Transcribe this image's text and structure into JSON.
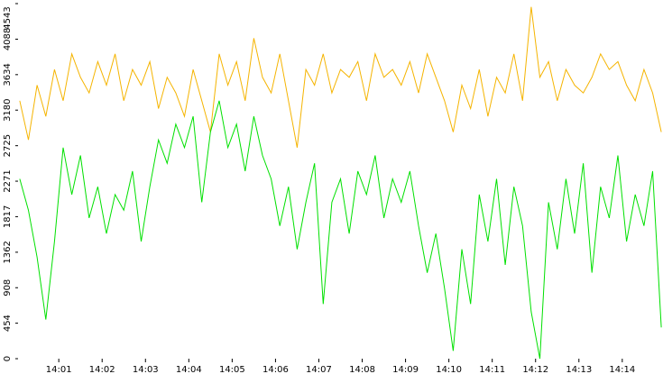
{
  "chart_data": {
    "type": "line",
    "x": [
      0.1,
      0.3,
      0.5,
      0.7,
      0.9,
      1.1,
      1.3,
      1.5,
      1.7,
      1.9,
      2.1,
      2.3,
      2.5,
      2.7,
      2.9,
      3.1,
      3.3,
      3.5,
      3.7,
      3.9,
      4.1,
      4.3,
      4.5,
      4.7,
      4.9,
      5.1,
      5.3,
      5.5,
      5.7,
      5.9,
      6.1,
      6.3,
      6.5,
      6.7,
      6.9,
      7.1,
      7.3,
      7.5,
      7.7,
      7.9,
      8.1,
      8.3,
      8.5,
      8.7,
      8.9,
      9.1,
      9.3,
      9.5,
      9.7,
      9.9,
      10.1,
      10.3,
      10.5,
      10.7,
      10.9,
      11.1,
      11.3,
      11.5,
      11.7,
      11.9,
      12.1,
      12.3,
      12.5,
      12.7,
      12.9,
      13.1,
      13.3,
      13.5,
      13.7,
      13.9,
      14.1,
      14.3,
      14.5,
      14.7,
      14.9
    ],
    "series": [
      {
        "color": "#f5b400",
        "values": [
          3300,
          2800,
          3500,
          3100,
          3700,
          3300,
          3900,
          3600,
          3400,
          3800,
          3500,
          3900,
          3300,
          3700,
          3500,
          3800,
          3200,
          3600,
          3400,
          3100,
          3700,
          3300,
          2900,
          3900,
          3500,
          3800,
          3300,
          4100,
          3600,
          3400,
          3900,
          3300,
          2700,
          3700,
          3500,
          3900,
          3400,
          3700,
          3600,
          3800,
          3300,
          3900,
          3600,
          3700,
          3500,
          3800,
          3400,
          3900,
          3600,
          3300,
          2900,
          3500,
          3200,
          3700,
          3100,
          3600,
          3400,
          3900,
          3300,
          4500,
          3600,
          3800,
          3300,
          3700,
          3500,
          3400,
          3600,
          3900,
          3700,
          3800,
          3500,
          3300,
          3700,
          3400,
          2900
        ]
      },
      {
        "color": "#00e000",
        "values": [
          2300,
          1900,
          1300,
          500,
          1500,
          2700,
          2100,
          2600,
          1800,
          2200,
          1600,
          2100,
          1900,
          2400,
          1500,
          2200,
          2800,
          2500,
          3000,
          2700,
          3100,
          2000,
          2900,
          3300,
          2700,
          3000,
          2400,
          3100,
          2600,
          2300,
          1700,
          2200,
          1400,
          2000,
          2500,
          700,
          2000,
          2300,
          1600,
          2400,
          2100,
          2600,
          1800,
          2300,
          2000,
          2400,
          1700,
          1100,
          1600,
          900,
          100,
          1400,
          700,
          2100,
          1500,
          2300,
          1200,
          2200,
          1700,
          600,
          0,
          2000,
          1400,
          2300,
          1600,
          2500,
          1100,
          2200,
          1800,
          2600,
          1500,
          2100,
          1700,
          2400,
          400
        ]
      }
    ],
    "xlim": [
      0.06,
      14.94
    ],
    "xticks": [
      {
        "value": 1,
        "label": "14:01"
      },
      {
        "value": 2,
        "label": "14:02"
      },
      {
        "value": 3,
        "label": "14:03"
      },
      {
        "value": 4,
        "label": "14:04"
      },
      {
        "value": 5,
        "label": "14:05"
      },
      {
        "value": 6,
        "label": "14:06"
      },
      {
        "value": 7,
        "label": "14:07"
      },
      {
        "value": 8,
        "label": "14:08"
      },
      {
        "value": 9,
        "label": "14:09"
      },
      {
        "value": 10,
        "label": "14:10"
      },
      {
        "value": 11,
        "label": "14:11"
      },
      {
        "value": 12,
        "label": "14:12"
      },
      {
        "value": 13,
        "label": "14:13"
      },
      {
        "value": 14,
        "label": "14:14"
      }
    ],
    "ylim": [
      0,
      4543
    ],
    "yticks": [
      0,
      454,
      908,
      1362,
      1817,
      2271,
      2725,
      3180,
      3634,
      4088,
      4543
    ]
  }
}
